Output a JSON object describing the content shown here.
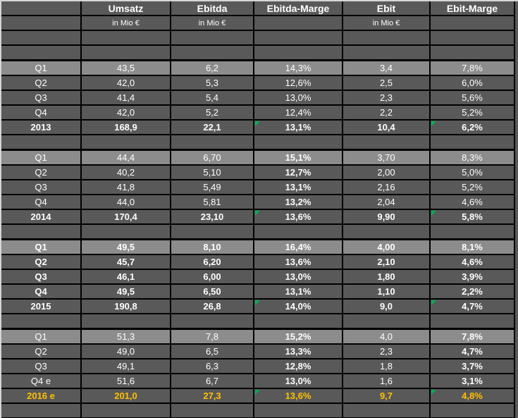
{
  "colors": {
    "cell_background": "#595959",
    "highlight_row_background": "#8c8c8c",
    "gridline": "#000000",
    "text": "#ffffff",
    "forecast_accent": "#ffc000",
    "warning_triangle": "#00b050",
    "page_edge": "#d5d5d5"
  },
  "table": {
    "columns": [
      {
        "label": "",
        "sub": ""
      },
      {
        "label": "Umsatz",
        "sub": "in Mio €"
      },
      {
        "label": "Ebitda",
        "sub": "in Mio €"
      },
      {
        "label": "Ebitda-Marge",
        "sub": ""
      },
      {
        "label": "Ebit",
        "sub": "in Mio €"
      },
      {
        "label": "Ebit-Marge",
        "sub": ""
      }
    ],
    "rows": [
      {
        "blank": true,
        "label": "",
        "cells": [
          "",
          "",
          "",
          "",
          ""
        ]
      },
      {
        "blank": true,
        "label": "",
        "cells": [
          "",
          "",
          "",
          "",
          ""
        ]
      },
      {
        "label": "Q1",
        "cells": [
          "43,5",
          "6,2",
          "14,3%",
          "3,4",
          "7,8%"
        ],
        "highlight": true
      },
      {
        "label": "Q2",
        "cells": [
          "42,0",
          "5,3",
          "12,6%",
          "2,5",
          "6,0%"
        ]
      },
      {
        "label": "Q3",
        "cells": [
          "41,4",
          "5,4",
          "13,0%",
          "2,3",
          "5,6%"
        ]
      },
      {
        "label": "Q4",
        "cells": [
          "42,0",
          "5,2",
          "12,4%",
          "2,2",
          "5,2%"
        ]
      },
      {
        "label": "2013",
        "cells": [
          "168,9",
          "22,1",
          "13,1%",
          "10,4",
          "6,2%"
        ],
        "bold_all": true,
        "flags": [
          2,
          4
        ]
      },
      {
        "blank": true,
        "label": "",
        "cells": [
          "",
          "",
          "",
          "",
          ""
        ]
      },
      {
        "label": "Q1",
        "cells": [
          "44,4",
          "6,70",
          "15,1%",
          "3,70",
          "8,3%"
        ],
        "highlight": true,
        "bold_cols": [
          2
        ]
      },
      {
        "label": "Q2",
        "cells": [
          "40,2",
          "5,10",
          "12,7%",
          "2,00",
          "5,0%"
        ],
        "bold_cols": [
          2
        ]
      },
      {
        "label": "Q3",
        "cells": [
          "41,8",
          "5,49",
          "13,1%",
          "2,16",
          "5,2%"
        ],
        "bold_cols": [
          2
        ]
      },
      {
        "label": "Q4",
        "cells": [
          "44,0",
          "5,81",
          "13,2%",
          "2,04",
          "4,6%"
        ],
        "bold_cols": [
          2
        ]
      },
      {
        "label": "2014",
        "cells": [
          "170,4",
          "23,10",
          "13,6%",
          "9,90",
          "5,8%"
        ],
        "bold_all": true,
        "flags": [
          2,
          4
        ]
      },
      {
        "blank": true,
        "label": "",
        "cells": [
          "",
          "",
          "",
          "",
          ""
        ]
      },
      {
        "label": "Q1",
        "cells": [
          "49,5",
          "8,10",
          "16,4%",
          "4,00",
          "8,1%"
        ],
        "highlight": true,
        "bold_all": true
      },
      {
        "label": "Q2",
        "cells": [
          "45,7",
          "6,20",
          "13,6%",
          "2,10",
          "4,6%"
        ],
        "bold_all": true
      },
      {
        "label": "Q3",
        "cells": [
          "46,1",
          "6,00",
          "13,0%",
          "1,80",
          "3,9%"
        ],
        "bold_all": true
      },
      {
        "label": "Q4",
        "cells": [
          "49,5",
          "6,50",
          "13,1%",
          "1,10",
          "2,2%"
        ],
        "bold_all": true
      },
      {
        "label": "2015",
        "cells": [
          "190,8",
          "26,8",
          "14,0%",
          "9,0",
          "4,7%"
        ],
        "bold_all": true,
        "flags": [
          2,
          4
        ]
      },
      {
        "blank": true,
        "label": "",
        "cells": [
          "",
          "",
          "",
          "",
          ""
        ]
      },
      {
        "label": "Q1",
        "cells": [
          "51,3",
          "7,8",
          "15,2%",
          "4,0",
          "7,8%"
        ],
        "highlight": true,
        "bold_cols": [
          2,
          4
        ]
      },
      {
        "label": "Q2",
        "cells": [
          "49,0",
          "6,5",
          "13,3%",
          "2,3",
          "4,7%"
        ],
        "bold_cols": [
          2,
          4
        ]
      },
      {
        "label": "Q3",
        "cells": [
          "49,1",
          "6,3",
          "12,8%",
          "1,8",
          "3,7%"
        ],
        "bold_cols": [
          2,
          4
        ]
      },
      {
        "label": "Q4 e",
        "cells": [
          "51,6",
          "6,7",
          "13,0%",
          "1,6",
          "3,1%"
        ],
        "bold_cols": [
          2,
          4
        ]
      },
      {
        "label": "2016 e",
        "cells": [
          "201,0",
          "27,3",
          "13,6%",
          "9,7",
          "4,8%"
        ],
        "bold_all": true,
        "accent": true,
        "flags": [
          2,
          4
        ]
      },
      {
        "blank": true,
        "label": "",
        "cells": [
          "",
          "",
          "",
          "",
          ""
        ]
      }
    ]
  }
}
